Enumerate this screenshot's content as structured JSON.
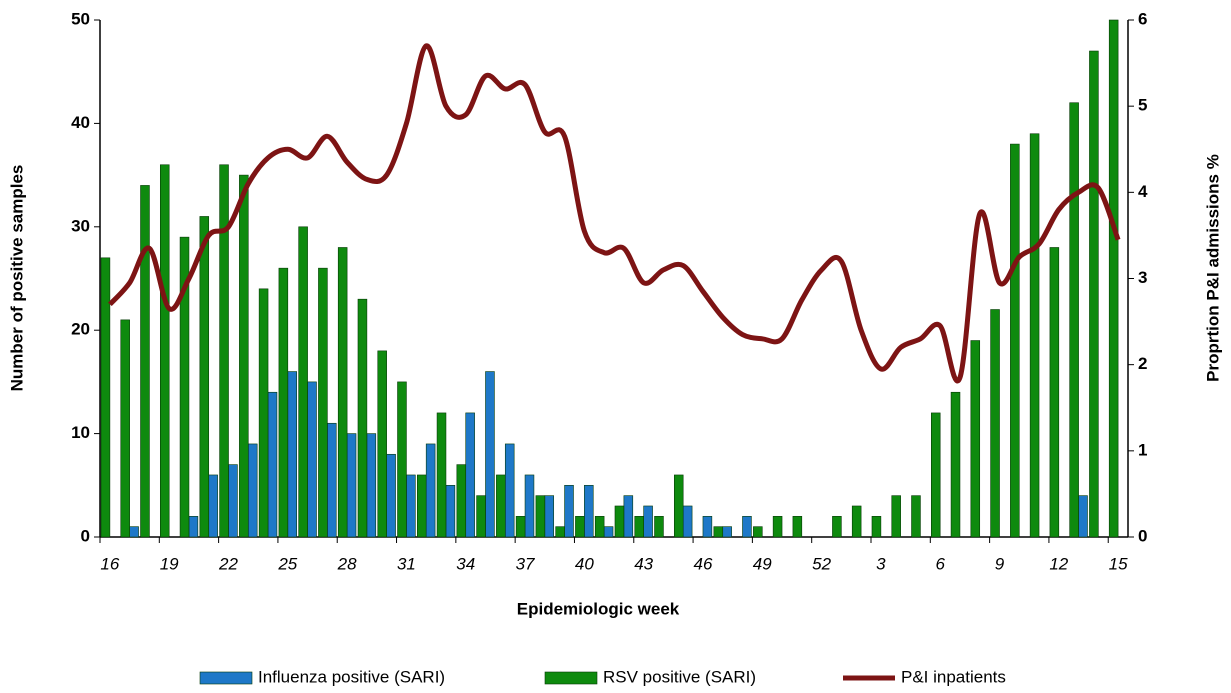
{
  "chart_data": {
    "type": "bar",
    "xlabel": "Epidemiologic week",
    "ylabel": "Number of positive samples",
    "y2label": "Proprtion P&I admissions %",
    "categories": [
      "16",
      null,
      null,
      "19",
      null,
      null,
      "22",
      null,
      null,
      "25",
      null,
      null,
      "28",
      null,
      null,
      "31",
      null,
      null,
      "34",
      null,
      null,
      "37",
      null,
      null,
      "40",
      null,
      null,
      "43",
      null,
      null,
      "46",
      null,
      null,
      "49",
      null,
      null,
      "52",
      null,
      null,
      "3",
      null,
      null,
      "6",
      null,
      null,
      "9",
      null,
      null,
      "12",
      null,
      null,
      "15"
    ],
    "ylim": [
      0,
      50
    ],
    "yticks": [
      0,
      10,
      20,
      30,
      40,
      50
    ],
    "y2lim": [
      0,
      6
    ],
    "y2ticks": [
      0,
      1,
      2,
      3,
      4,
      5,
      6
    ],
    "series": [
      {
        "name": "Influenza positive (SARI)",
        "type": "bar",
        "color": "#1e78c8",
        "values": [
          0,
          1,
          0,
          0,
          2,
          6,
          7,
          9,
          14,
          16,
          15,
          11,
          10,
          10,
          8,
          6,
          9,
          5,
          12,
          16,
          9,
          6,
          4,
          5,
          5,
          1,
          4,
          3,
          0,
          3,
          2,
          1,
          2,
          0,
          0,
          0,
          0,
          0,
          0,
          0,
          0,
          0,
          0,
          0,
          0,
          0,
          0,
          0,
          0,
          4,
          0,
          0
        ]
      },
      {
        "name": "RSV positive (SARI)",
        "type": "bar",
        "color": "#0e8a0e",
        "values": [
          27,
          21,
          34,
          36,
          29,
          31,
          36,
          35,
          24,
          26,
          30,
          26,
          28,
          23,
          18,
          15,
          6,
          12,
          7,
          4,
          6,
          2,
          4,
          1,
          2,
          2,
          3,
          2,
          2,
          6,
          0,
          1,
          0,
          1,
          2,
          2,
          0,
          2,
          3,
          2,
          4,
          4,
          12,
          14,
          19,
          22,
          38,
          39,
          28,
          42,
          47,
          50
        ]
      },
      {
        "name": "P&I inpatients",
        "type": "line",
        "axis": "y2",
        "color": "#7d1414",
        "values": [
          2.7,
          2.95,
          3.35,
          2.65,
          3.0,
          3.5,
          3.6,
          4.1,
          4.4,
          4.5,
          4.4,
          4.65,
          4.35,
          4.15,
          4.2,
          4.8,
          5.7,
          5.0,
          4.9,
          5.35,
          5.2,
          5.25,
          4.7,
          4.65,
          3.55,
          3.3,
          3.35,
          2.95,
          3.1,
          3.15,
          2.85,
          2.55,
          2.35,
          2.3,
          2.3,
          2.75,
          3.1,
          3.2,
          2.4,
          1.95,
          2.2,
          2.3,
          2.45,
          1.85,
          3.75,
          2.95,
          3.25,
          3.4,
          3.8,
          4.0,
          4.05,
          3.45
        ]
      }
    ]
  }
}
